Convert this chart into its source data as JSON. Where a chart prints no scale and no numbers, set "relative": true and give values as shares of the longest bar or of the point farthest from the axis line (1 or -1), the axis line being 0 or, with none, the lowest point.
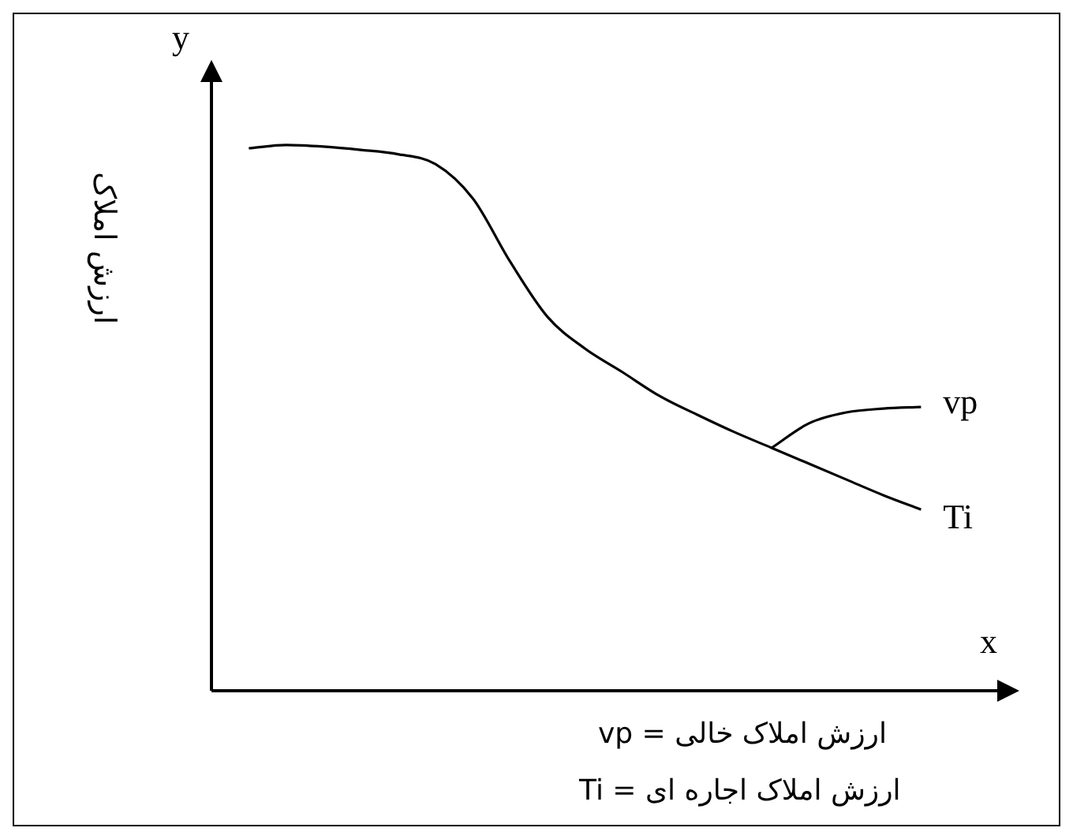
{
  "chart_data": {
    "type": "line",
    "relative": true,
    "xlabel": "x",
    "ylabel": "y",
    "categories": [
      null,
      null,
      null,
      null,
      null,
      null,
      null,
      null,
      null,
      null,
      null,
      null,
      null,
      null,
      null,
      null,
      null,
      null,
      null,
      null,
      null,
      null
    ],
    "series": [
      {
        "name": "Ti",
        "color": "#000000",
        "values": [
          null,
          0.994,
          1,
          0.997,
          0.991,
          0.983,
          0.965,
          0.902,
          0.786,
          0.685,
          0.627,
          0.584,
          0.54,
          0.506,
          0.474,
          0.445,
          0.416,
          0.387,
          0.358,
          0.332,
          null,
          null
        ]
      },
      {
        "name": "vp",
        "color": "#000000",
        "values": [
          null,
          null,
          null,
          null,
          null,
          null,
          null,
          null,
          null,
          null,
          null,
          null,
          null,
          null,
          null,
          0.445,
          0.49,
          0.51,
          0.517,
          0.52,
          null,
          null
        ]
      }
    ],
    "annotations": [
      "ارزش املاک",
      "vp = ارزش املاک خالی",
      "Ti = ارزش املاک اجاره ای"
    ],
    "legend": false,
    "marker": "none",
    "line_style": "solid"
  }
}
